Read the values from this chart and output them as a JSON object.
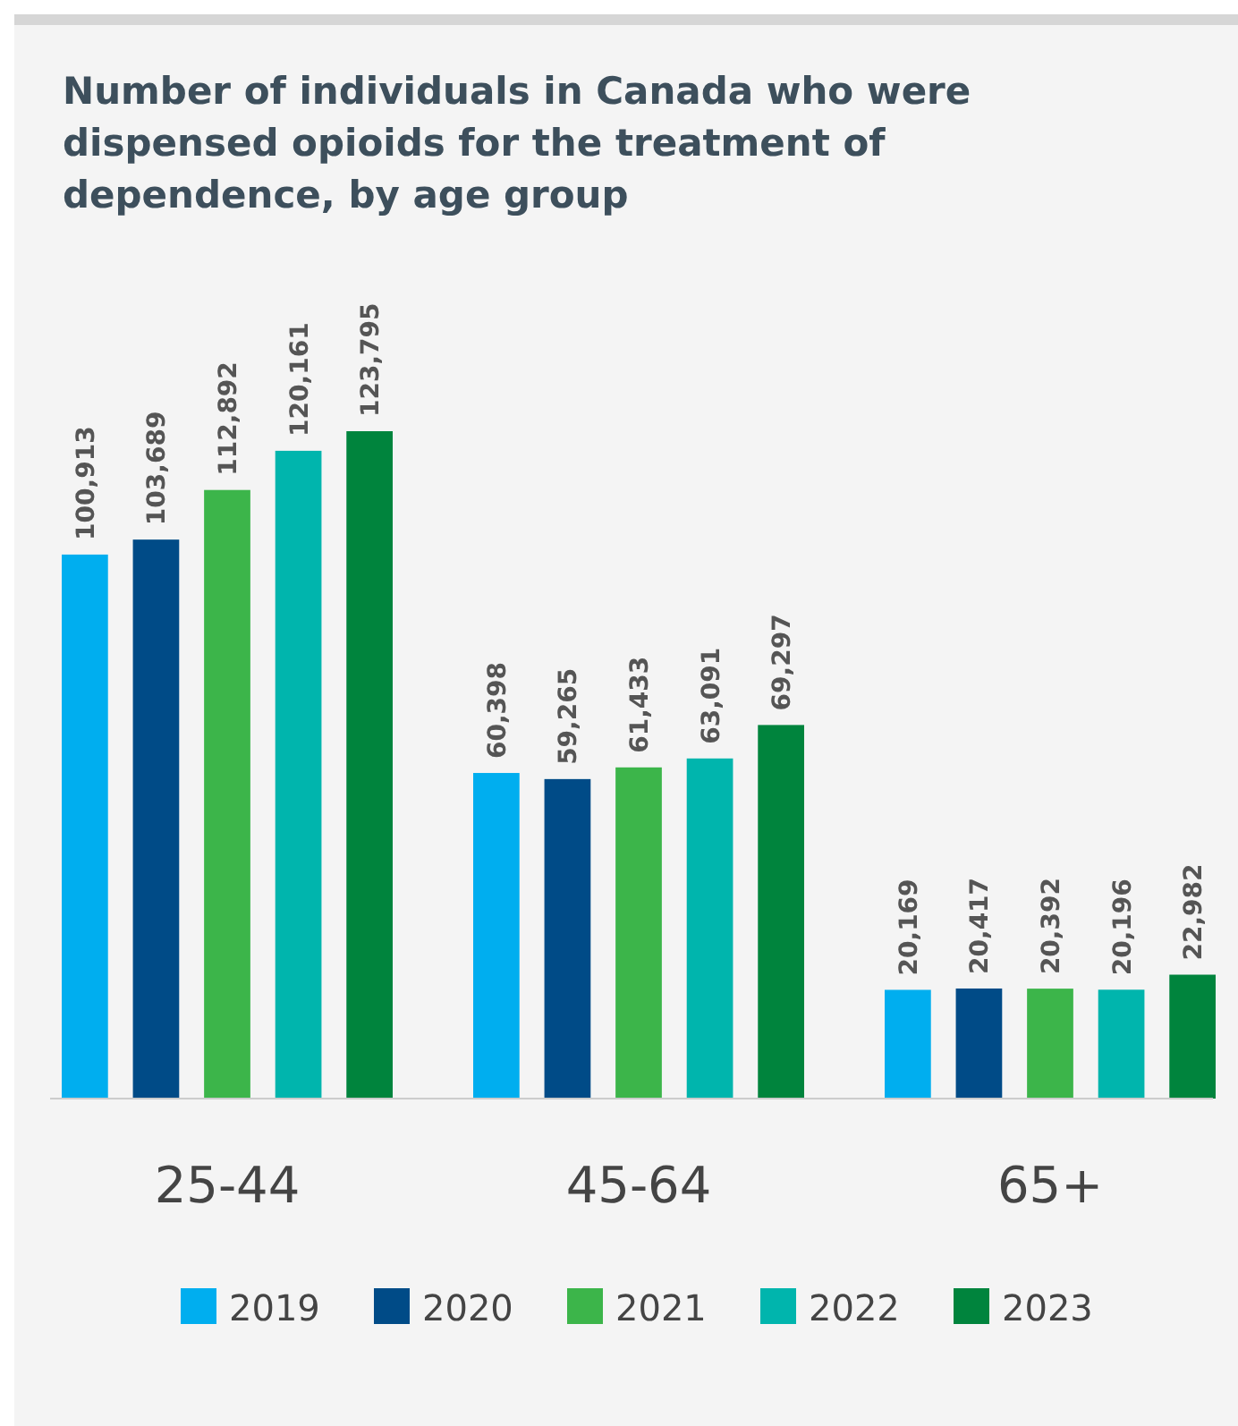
{
  "chart_data": {
    "type": "bar",
    "title": "Number of individuals in Canada who were dispensed opioids for the treatment of dependence, by age group",
    "categories": [
      "25-44",
      "45-64",
      "65+"
    ],
    "series": [
      {
        "name": "2019",
        "color": "#00aeef",
        "values": [
          100913,
          60398,
          20169
        ],
        "value_labels": [
          "100,913",
          "60,398",
          "20,169"
        ]
      },
      {
        "name": "2020",
        "color": "#004b87",
        "values": [
          103689,
          59265,
          20417
        ],
        "value_labels": [
          "103,689",
          "59,265",
          "20,417"
        ]
      },
      {
        "name": "2021",
        "color": "#3cb54a",
        "values": [
          112892,
          61433,
          20392
        ],
        "value_labels": [
          "112,892",
          "61,433",
          "20,392"
        ]
      },
      {
        "name": "2022",
        "color": "#00b5ad",
        "values": [
          120161,
          63091,
          20196
        ],
        "value_labels": [
          "120,161",
          "63,091",
          "20,196"
        ]
      },
      {
        "name": "2023",
        "color": "#00843d",
        "values": [
          123795,
          69297,
          22982
        ],
        "value_labels": [
          "123,795",
          "69,297",
          "22,982"
        ]
      }
    ],
    "legend": "bottom"
  }
}
